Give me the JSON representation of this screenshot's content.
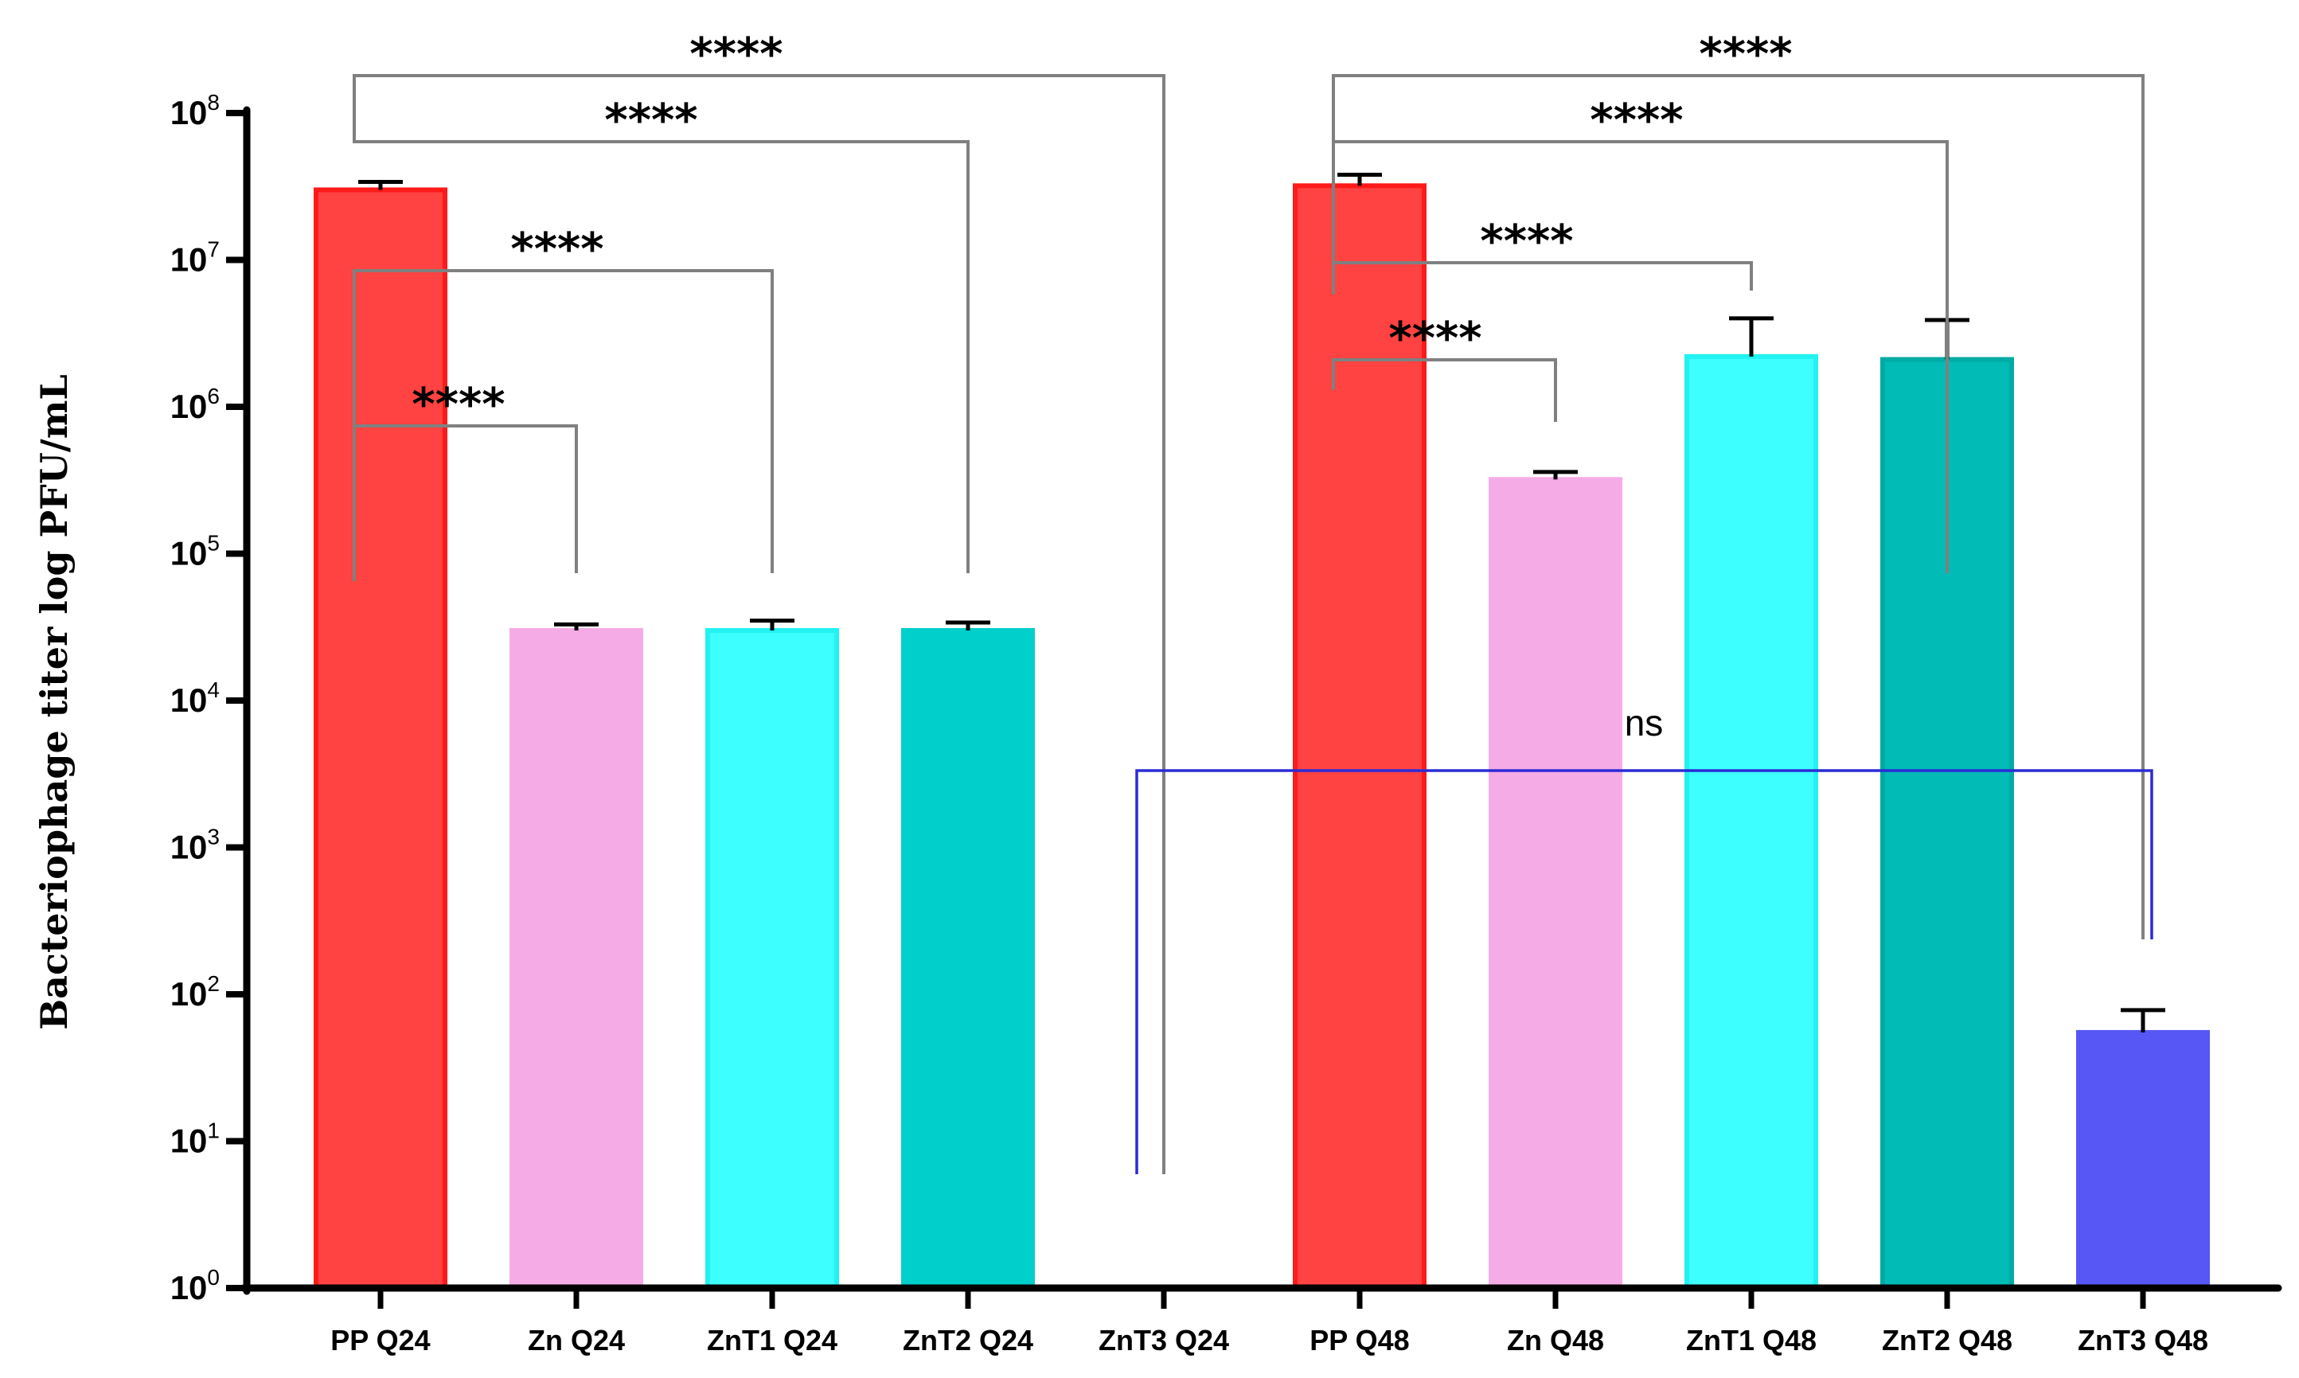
{
  "chart_data": {
    "type": "bar",
    "title": "",
    "xlabel": "",
    "ylabel": "Bacteriophage titer log PFU/mL",
    "yscale": "log10",
    "ylim": [
      1,
      100000000
    ],
    "ytick_base": "10",
    "ytick_exponents": [
      "0",
      "1",
      "2",
      "3",
      "4",
      "5",
      "6",
      "7",
      "8"
    ],
    "categories": [
      "PP Q24",
      "Zn Q24",
      "ZnT1 Q24",
      "ZnT2 Q24",
      "ZnT3 Q24",
      "PP Q48",
      "Zn Q48",
      "ZnT1 Q48",
      "ZnT2 Q48",
      "ZnT3 Q48"
    ],
    "values": [
      30000000,
      30000,
      30000,
      30000,
      0,
      32000000,
      320000,
      2200000,
      2100000,
      55
    ],
    "errors_upper": [
      34000000,
      33000,
      35000,
      34000,
      null,
      38000000,
      360000,
      4000000,
      3900000,
      78
    ],
    "colors": [
      "#ff4242",
      "#f5abe6",
      "#3effff",
      "#00cfcc",
      "#ffffff",
      "#ff4242",
      "#f5abe6",
      "#3effff",
      "#00bbb6",
      "#5757f5"
    ],
    "edge_colors": [
      "#ff1a1a",
      "#f5abe6",
      "#22f2f2",
      "#00cfcc",
      "#ffffff",
      "#ff1a1a",
      "#f5abe6",
      "#22f2f2",
      "#00aaa5",
      "#5757f5"
    ],
    "comparisons": [
      {
        "from": "PP Q24",
        "to": "ZnT3 Q24",
        "label": "****",
        "color": "#808080"
      },
      {
        "from": "PP Q24",
        "to": "ZnT2 Q24",
        "label": "****",
        "color": "#808080"
      },
      {
        "from": "PP Q24",
        "to": "ZnT1 Q24",
        "label": "****",
        "color": "#808080"
      },
      {
        "from": "PP Q24",
        "to": "Zn Q24",
        "label": "****",
        "color": "#808080"
      },
      {
        "from": "PP Q48",
        "to": "ZnT3 Q48",
        "label": "****",
        "color": "#808080"
      },
      {
        "from": "PP Q48",
        "to": "ZnT2 Q48",
        "label": "****",
        "color": "#808080"
      },
      {
        "from": "PP Q48",
        "to": "ZnT1 Q48",
        "label": "****",
        "color": "#808080"
      },
      {
        "from": "PP Q48",
        "to": "Zn Q48",
        "label": "****",
        "color": "#808080"
      },
      {
        "from": "ZnT3 Q24",
        "to": "ZnT3 Q48",
        "label": "ns",
        "color": "#2b2bd6"
      }
    ]
  }
}
